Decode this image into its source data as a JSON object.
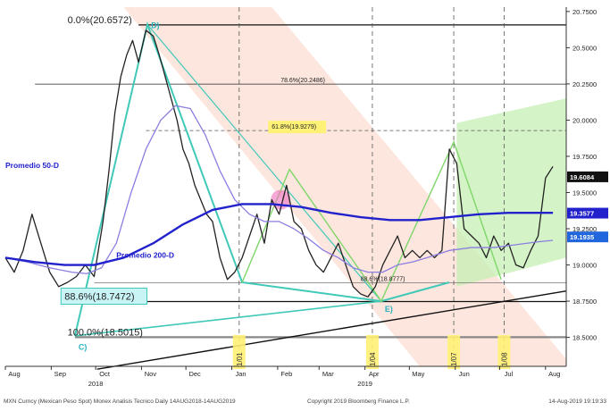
{
  "chart_data": {
    "type": "line",
    "title": "",
    "xlabel": "",
    "ylabel": "",
    "ylim": [
      18.3,
      20.78
    ],
    "yticks": [
      "20.7500",
      "20.5000",
      "20.2500",
      "20.0000",
      "19.7500",
      "19.5000",
      "19.2500",
      "19.0000",
      "18.7500",
      "18.5000"
    ],
    "ytick_values": [
      20.75,
      20.5,
      20.25,
      20.0,
      19.75,
      19.5,
      19.25,
      19.0,
      18.75,
      18.5
    ],
    "xticks": [
      "Aug",
      "Sep",
      "Oct",
      "Nov",
      "Dec",
      "Jan",
      "Feb",
      "Mar",
      "Apr",
      "May",
      "Jun",
      "Jul",
      "Aug"
    ],
    "xtick_values": [
      0,
      31,
      61,
      92,
      122,
      153,
      184,
      212,
      243,
      273,
      304,
      334,
      365
    ],
    "year_labels": [
      {
        "text": "2018",
        "x": 61
      },
      {
        "text": "2019",
        "x": 243
      }
    ],
    "x_range": [
      0,
      379
    ],
    "grid": false,
    "series": [
      {
        "name": "MXN Curncy",
        "color": "#222222",
        "x": [
          0,
          6,
          12,
          18,
          24,
          30,
          36,
          42,
          48,
          54,
          60,
          66,
          70,
          74,
          78,
          82,
          86,
          90,
          95,
          100,
          104,
          108,
          112,
          116,
          120,
          124,
          128,
          132,
          136,
          140,
          145,
          150,
          155,
          160,
          165,
          170,
          175,
          180,
          185,
          190,
          195,
          200,
          205,
          210,
          215,
          220,
          225,
          230,
          235,
          240,
          245,
          250,
          255,
          260,
          265,
          270,
          275,
          280,
          285,
          290,
          295,
          300,
          305,
          310,
          315,
          320,
          325,
          330,
          335,
          340,
          345,
          350,
          355,
          360,
          365,
          370
        ],
        "y": [
          19.05,
          18.95,
          19.1,
          19.35,
          19.15,
          18.95,
          18.85,
          18.88,
          18.92,
          19.0,
          18.92,
          19.3,
          19.65,
          20.05,
          20.3,
          20.45,
          20.55,
          20.4,
          20.62,
          20.58,
          20.45,
          20.3,
          20.15,
          20.0,
          19.8,
          19.7,
          19.55,
          19.45,
          19.35,
          19.3,
          19.05,
          18.9,
          18.95,
          19.05,
          19.2,
          19.35,
          19.15,
          19.45,
          19.35,
          19.55,
          19.3,
          19.25,
          19.1,
          19.0,
          18.95,
          19.05,
          19.15,
          19.0,
          18.85,
          18.8,
          18.78,
          18.85,
          19.0,
          19.1,
          19.2,
          19.05,
          19.1,
          19.05,
          19.1,
          19.05,
          19.1,
          19.8,
          19.7,
          19.25,
          19.2,
          19.15,
          19.05,
          19.2,
          19.1,
          19.15,
          19.0,
          18.98,
          19.1,
          19.2,
          19.6,
          19.68
        ]
      },
      {
        "name": "Promedio 50-D",
        "color": "#8b7ee0",
        "x": [
          0,
          15,
          30,
          45,
          55,
          65,
          75,
          85,
          95,
          105,
          115,
          125,
          135,
          145,
          155,
          165,
          175,
          185,
          195,
          205,
          215,
          225,
          235,
          245,
          255,
          265,
          275,
          285,
          300,
          315,
          330,
          345,
          360,
          370
        ],
        "y": [
          19.05,
          19.02,
          18.98,
          18.95,
          18.94,
          18.98,
          19.15,
          19.5,
          19.8,
          20.0,
          20.1,
          20.08,
          19.9,
          19.65,
          19.45,
          19.35,
          19.3,
          19.3,
          19.25,
          19.18,
          19.1,
          19.05,
          18.98,
          18.95,
          18.95,
          19.0,
          19.02,
          19.05,
          19.1,
          19.12,
          19.12,
          19.14,
          19.16,
          19.17
        ]
      },
      {
        "name": "Promedio 200-D",
        "color": "#2222cc",
        "x": [
          0,
          20,
          40,
          60,
          80,
          100,
          120,
          140,
          160,
          180,
          200,
          220,
          240,
          260,
          280,
          300,
          320,
          340,
          360,
          370
        ],
        "y": [
          19.05,
          19.02,
          19.0,
          19.0,
          19.05,
          19.15,
          19.28,
          19.38,
          19.42,
          19.42,
          19.4,
          19.36,
          19.33,
          19.31,
          19.31,
          19.33,
          19.35,
          19.36,
          19.36,
          19.36
        ]
      }
    ],
    "fibonacci": [
      {
        "label": "0.0%(20.6572)",
        "value": 20.6572
      },
      {
        "label": "78.6%(20.2486)",
        "value": 20.2486
      },
      {
        "label": "61.8%(19.9279)",
        "value": 19.9279
      },
      {
        "label": "88.6%(18.8777)",
        "value": 18.8777
      },
      {
        "label": "88.6%(18.7472)",
        "value": 18.7472
      },
      {
        "label": "100.0%(18.5015)",
        "value": 18.5015
      }
    ],
    "point_labels": [
      {
        "label": "D)",
        "x": 96,
        "y": 20.66
      },
      {
        "label": "C)",
        "x": 47,
        "y": 18.44
      },
      {
        "label": "E)",
        "x": 254,
        "y": 18.7
      }
    ],
    "vline_dates": [
      {
        "label": "1/01",
        "x": 158
      },
      {
        "label": "1/04",
        "x": 248
      },
      {
        "label": "1/07",
        "x": 303
      },
      {
        "label": "1/08",
        "x": 337
      }
    ],
    "last_values": [
      {
        "label": "19.6084",
        "value": 19.6084,
        "color": "#111111"
      },
      {
        "label": "19.3577",
        "value": 19.3577,
        "color": "#2222cc"
      },
      {
        "label": "19.1935",
        "value": 19.1935,
        "color": "#2266dd"
      }
    ],
    "series_labels": [
      {
        "text": "Promedio 50-D",
        "color": "#2222cc"
      },
      {
        "text": "Promedio 200-D",
        "color": "#2222cc"
      }
    ],
    "colors": {
      "fib_box": "#fff176",
      "fib_box_teal": "#c9f4f6",
      "pattern": "#40c9b8",
      "channel_green": "#c6efb4",
      "channel_pink": "#fde0d6",
      "trend": "#111111"
    }
  },
  "footer": {
    "left": "MXN Curncy (Mexican Peso Spot) Monex Analisis Tecnico  Daily 14AUG2018-14AUG2019",
    "center": "Copyright 2019 Bloomberg Finance L.P.",
    "right": "14-Aug-2019 19:19:33"
  }
}
